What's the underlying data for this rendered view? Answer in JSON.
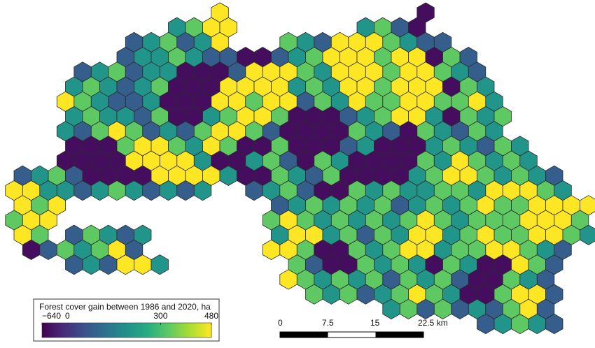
{
  "map": {
    "legend": {
      "title": "Forest cover gain between 1986 and 2020, ha",
      "range": [
        -640,
        480
      ],
      "ticks": [
        {
          "value": -640,
          "label": "−640"
        },
        0,
        300,
        480
      ]
    },
    "hexes": [
      [
        null,
        null,
        null,
        null,
        null,
        null,
        null,
        null,
        null,
        null,
        null,
        null,
        480,
        null,
        null,
        null,
        null,
        null,
        null,
        null,
        null,
        null,
        null,
        null,
        -500
      ],
      [
        null,
        null,
        null,
        null,
        null,
        null,
        null,
        null,
        null,
        200,
        330,
        480,
        480,
        null,
        null,
        null,
        null,
        null,
        null,
        null,
        200,
        330,
        80,
        -500
      ],
      [
        null,
        null,
        null,
        null,
        null,
        null,
        null,
        80,
        200,
        330,
        80,
        200,
        480,
        null,
        null,
        null,
        330,
        200,
        80,
        480,
        480,
        480,
        330,
        200,
        80,
        80
      ],
      [
        null,
        null,
        null,
        null,
        null,
        null,
        80,
        200,
        200,
        330,
        200,
        80,
        80,
        -500,
        -500,
        80,
        200,
        330,
        480,
        480,
        480,
        330,
        480,
        480,
        -500,
        330,
        80
      ],
      [
        null,
        null,
        null,
        null,
        80,
        200,
        330,
        80,
        200,
        200,
        -500,
        -500,
        -500,
        80,
        480,
        480,
        480,
        330,
        200,
        480,
        480,
        480,
        330,
        480,
        480,
        330,
        200,
        80
      ],
      [
        null,
        null,
        null,
        200,
        330,
        200,
        80,
        200,
        330,
        -500,
        -500,
        -500,
        480,
        480,
        480,
        480,
        200,
        330,
        200,
        480,
        480,
        330,
        480,
        480,
        480,
        -500,
        330,
        200
      ],
      [
        null,
        null,
        null,
        480,
        330,
        200,
        80,
        80,
        200,
        -500,
        -500,
        -500,
        480,
        480,
        330,
        480,
        480,
        80,
        330,
        200,
        480,
        330,
        330,
        480,
        480,
        330,
        330,
        480,
        200
      ],
      [
        null,
        null,
        null,
        200,
        330,
        200,
        200,
        80,
        330,
        -500,
        -500,
        200,
        330,
        480,
        480,
        330,
        -500,
        -500,
        -500,
        80,
        200,
        330,
        480,
        480,
        200,
        -500,
        330,
        200,
        330
      ],
      [
        null,
        null,
        null,
        200,
        80,
        330,
        480,
        330,
        80,
        200,
        80,
        330,
        480,
        480,
        330,
        80,
        -500,
        -500,
        -500,
        -500,
        330,
        200,
        80,
        -500,
        330,
        200,
        80,
        330,
        200
      ],
      [
        null,
        null,
        null,
        -500,
        -500,
        -500,
        330,
        480,
        480,
        330,
        200,
        480,
        330,
        -500,
        -500,
        330,
        -500,
        -500,
        -500,
        80,
        200,
        -500,
        -500,
        -500,
        200,
        330,
        200,
        80,
        330,
        200
      ],
      [
        null,
        null,
        null,
        -500,
        -500,
        -500,
        -500,
        480,
        480,
        480,
        480,
        200,
        -500,
        -500,
        200,
        330,
        80,
        -500,
        330,
        200,
        -500,
        -500,
        -500,
        -500,
        330,
        200,
        480,
        330,
        200,
        330,
        200
      ],
      [
        80,
        200,
        330,
        80,
        -500,
        -500,
        -500,
        -500,
        480,
        480,
        480,
        480,
        200,
        -500,
        -500,
        330,
        200,
        80,
        330,
        -500,
        -500,
        -500,
        -500,
        200,
        330,
        480,
        480,
        330,
        200,
        330,
        200,
        80
      ],
      [
        480,
        480,
        200,
        200,
        80,
        200,
        330,
        200,
        80,
        200,
        80,
        200,
        null,
        null,
        80,
        200,
        330,
        80,
        -500,
        -500,
        330,
        200,
        330,
        200,
        200,
        330,
        330,
        200,
        480,
        480,
        480,
        330,
        200
      ],
      [
        480,
        330,
        480,
        null,
        null,
        null,
        null,
        null,
        null,
        null,
        null,
        null,
        null,
        null,
        null,
        80,
        200,
        330,
        200,
        330,
        200,
        330,
        80,
        200,
        330,
        200,
        330,
        480,
        330,
        330,
        480,
        480,
        480,
        480
      ],
      [
        330,
        480,
        480,
        null,
        null,
        null,
        null,
        null,
        null,
        null,
        null,
        null,
        null,
        null,
        null,
        330,
        480,
        330,
        200,
        330,
        200,
        330,
        200,
        330,
        480,
        330,
        200,
        330,
        330,
        330,
        480,
        480,
        480,
        330
      ],
      [
        480,
        330,
        null,
        80,
        330,
        200,
        80,
        200,
        null,
        null,
        null,
        null,
        null,
        null,
        null,
        200,
        480,
        480,
        200,
        330,
        80,
        330,
        200,
        480,
        480,
        200,
        330,
        480,
        330,
        330,
        480,
        480,
        330,
        200
      ],
      [
        null,
        -500,
        80,
        330,
        200,
        330,
        480,
        80,
        null,
        null,
        null,
        null,
        null,
        null,
        null,
        480,
        480,
        330,
        -500,
        -500,
        330,
        200,
        330,
        480,
        480,
        200,
        330,
        330,
        480,
        480,
        330,
        200,
        80
      ],
      [
        null,
        null,
        null,
        80,
        200,
        80,
        480,
        480,
        200,
        null,
        null,
        null,
        null,
        null,
        null,
        null,
        330,
        80,
        -500,
        -500,
        330,
        200,
        330,
        200,
        -500,
        330,
        200,
        -500,
        -500,
        480,
        330,
        80
      ],
      [
        null,
        null,
        null,
        null,
        null,
        null,
        null,
        null,
        null,
        null,
        null,
        null,
        null,
        null,
        null,
        null,
        480,
        330,
        200,
        330,
        200,
        330,
        80,
        330,
        200,
        330,
        80,
        -500,
        -500,
        330,
        200,
        80
      ],
      [
        null,
        null,
        null,
        null,
        null,
        null,
        null,
        null,
        null,
        null,
        null,
        null,
        null,
        null,
        null,
        null,
        null,
        330,
        200,
        330,
        80,
        200,
        330,
        480,
        330,
        200,
        -500,
        -500,
        330,
        480,
        480,
        80
      ],
      [
        null,
        null,
        null,
        null,
        null,
        null,
        null,
        null,
        null,
        null,
        null,
        null,
        null,
        null,
        null,
        null,
        null,
        null,
        null,
        null,
        null,
        null,
        200,
        330,
        80,
        330,
        80,
        200,
        80,
        330,
        480,
        80
      ],
      [
        null,
        null,
        null,
        null,
        null,
        null,
        null,
        null,
        null,
        null,
        null,
        null,
        null,
        null,
        null,
        null,
        null,
        null,
        null,
        null,
        null,
        null,
        null,
        null,
        null,
        null,
        null,
        80,
        200,
        330,
        200,
        80
      ]
    ]
  },
  "scale_bar": {
    "labels": [
      "0",
      "7.5",
      "15",
      "22.5 km"
    ]
  }
}
